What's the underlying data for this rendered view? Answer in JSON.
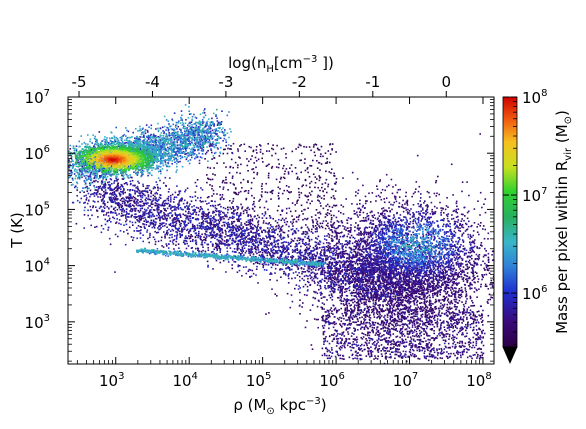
{
  "chart_data": {
    "type": "heatmap",
    "description_note": "",
    "x": {
      "label_main": "ρ (M",
      "label_sub": "⊙",
      "label_tail": " kpc",
      "label_sup": "−3",
      "label_close": ")",
      "scale": "log",
      "range_log10": [
        2.35,
        8.15
      ],
      "ticks": [
        {
          "exp": "3",
          "value": 3
        },
        {
          "exp": "4",
          "value": 4
        },
        {
          "exp": "5",
          "value": 5
        },
        {
          "exp": "6",
          "value": 6
        },
        {
          "exp": "7",
          "value": 7
        },
        {
          "exp": "8",
          "value": 8
        }
      ]
    },
    "x_top": {
      "label_main": "log(n",
      "label_sub": "H",
      "label_mid": "[cm",
      "label_sup": "−3",
      "label_close": " ])",
      "ticks": [
        {
          "label": "-5",
          "value": -5
        },
        {
          "label": "-4",
          "value": -4
        },
        {
          "label": "-3",
          "value": -3
        },
        {
          "label": "-2",
          "value": -2
        },
        {
          "label": "-1",
          "value": -1
        },
        {
          "label": "0",
          "value": 0
        }
      ],
      "offset_from_bottom_log": 7.5
    },
    "y": {
      "label": "T (K)",
      "scale": "log",
      "range_log10": [
        2.25,
        7.0
      ],
      "ticks": [
        {
          "exp": "3",
          "value": 3
        },
        {
          "exp": "4",
          "value": 4
        },
        {
          "exp": "5",
          "value": 5
        },
        {
          "exp": "6",
          "value": 6
        },
        {
          "exp": "7",
          "value": 7
        }
      ]
    },
    "colorbar": {
      "label_main": "Mass per pixel within R",
      "label_sub": "vir",
      "label_tail": " (M",
      "label_sub2": "⊙",
      "label_close": ")",
      "scale": "log",
      "range_log10": [
        5.45,
        8.0
      ],
      "ticks": [
        {
          "exp": "6",
          "value": 6
        },
        {
          "exp": "7",
          "value": 7
        },
        {
          "exp": "8",
          "value": 8
        }
      ],
      "extend": "min"
    },
    "features": [
      {
        "name": "hot halo gas",
        "x_log": [
          2.4,
          4.4
        ],
        "y_log": [
          5.6,
          6.65
        ],
        "peak_log_mass": 7.9
      },
      {
        "name": "cooling band",
        "x_log": [
          2.7,
          6.8
        ],
        "y_log": [
          3.5,
          5.4
        ],
        "peak_log_mass": 6.0
      },
      {
        "name": "warm equilibrium line",
        "x_log": [
          3.2,
          5.8
        ],
        "y_log": [
          4.0,
          4.3
        ],
        "peak_log_mass": 6.5
      },
      {
        "name": "dense ISM",
        "x_log": [
          5.8,
          8.0
        ],
        "y_log": [
          2.3,
          5.5
        ],
        "peak_log_mass": 6.8
      }
    ]
  }
}
